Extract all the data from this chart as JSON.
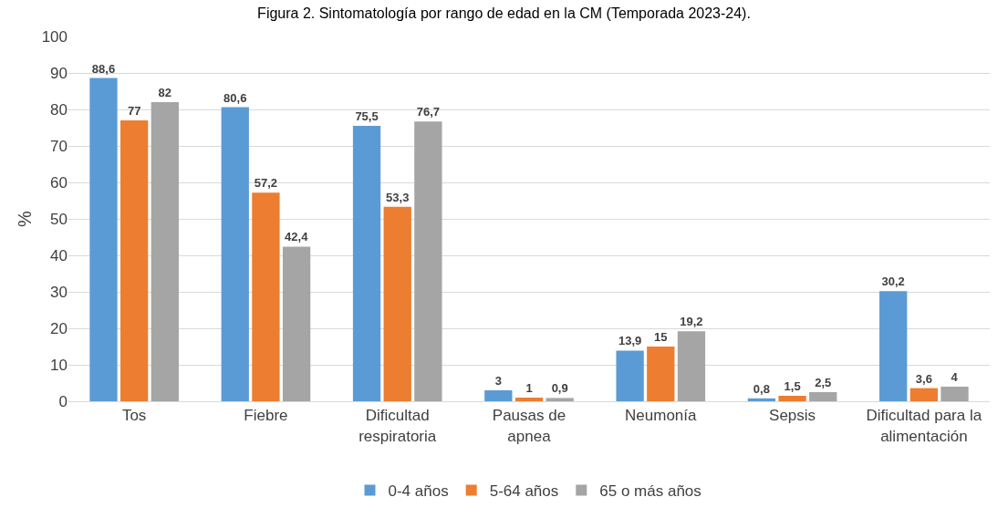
{
  "chart_data": {
    "type": "bar",
    "title": "Figura 2. Sintomatología por rango de edad en la CM (Temporada 2023-24).",
    "ylabel": "%",
    "categories": [
      "Tos",
      "Fiebre",
      "Dificultad respiratoria",
      "Pausas de apnea",
      "Neumonía",
      "Sepsis",
      "Dificultad para la alimentación"
    ],
    "series": [
      {
        "name": "0-4 años",
        "color": "#5b9bd5",
        "values": [
          88.6,
          80.6,
          75.5,
          3,
          13.9,
          0.8,
          30.2
        ],
        "value_labels": [
          "88,6",
          "80,6",
          "75,5",
          "3",
          "13,9",
          "0,8",
          "30,2"
        ]
      },
      {
        "name": "5-64 años",
        "color": "#ed7d31",
        "values": [
          77,
          57.2,
          53.3,
          1,
          15,
          1.5,
          3.6
        ],
        "value_labels": [
          "77",
          "57,2",
          "53,3",
          "1",
          "15",
          "1,5",
          "3,6"
        ]
      },
      {
        "name": "65 o más años",
        "color": "#a5a5a5",
        "values": [
          82,
          42.4,
          76.7,
          0.9,
          19.2,
          2.5,
          4
        ],
        "value_labels": [
          "82",
          "42,4",
          "76,7",
          "0,9",
          "19,2",
          "2,5",
          "4"
        ]
      }
    ],
    "ylim": [
      0,
      100
    ],
    "yticks": [
      0,
      10,
      20,
      30,
      40,
      50,
      60,
      70,
      80,
      90,
      100
    ],
    "grid": "y",
    "legend": "bottom"
  }
}
